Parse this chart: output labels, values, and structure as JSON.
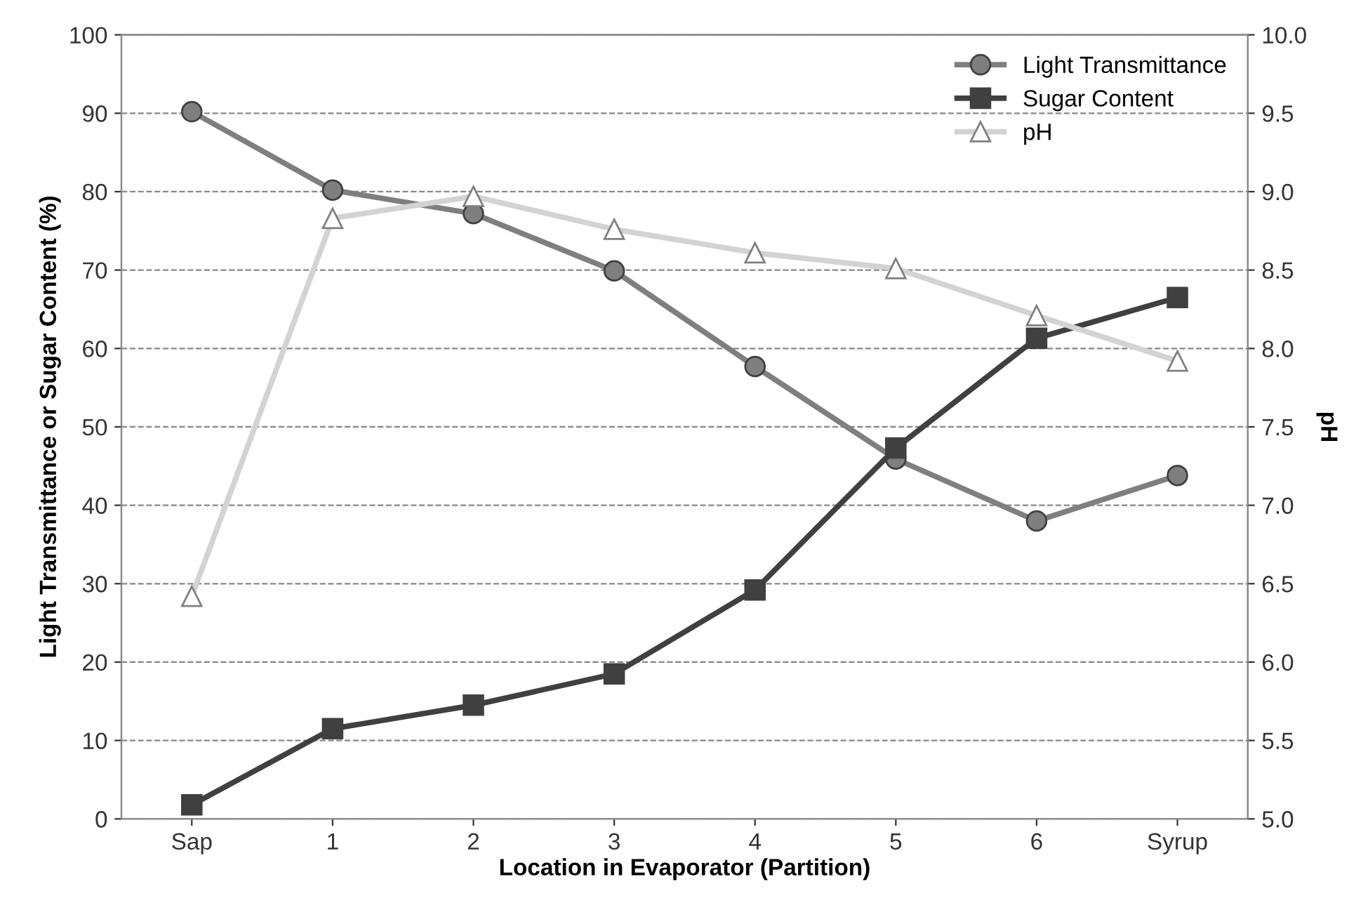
{
  "chart_data": {
    "type": "line",
    "xlabel": "Location in Evaporator (Partition)",
    "ylabel": "Light Transmittance or Sugar Content (%)",
    "y2label": "pH",
    "categories": [
      "Sap",
      "1",
      "2",
      "3",
      "4",
      "5",
      "6",
      "Syrup"
    ],
    "series": [
      {
        "name": "Light Transmittance",
        "color": "#7f7f7f",
        "marker": "circle",
        "values": [
          90.2,
          80.2,
          77.2,
          69.9,
          57.7,
          45.9,
          38.0,
          43.8
        ]
      },
      {
        "name": "Sugar Content",
        "color": "#404040",
        "marker": "square",
        "values": [
          1.8,
          11.5,
          14.5,
          18.5,
          29.2,
          47.3,
          61.3,
          66.5
        ]
      },
      {
        "name": "pH",
        "color": "#d3d3d3",
        "marker": "triangle",
        "axis": "y2",
        "values": [
          6.42,
          8.83,
          8.97,
          8.76,
          8.61,
          8.51,
          8.21,
          7.92
        ]
      }
    ],
    "ylim": [
      0,
      100
    ],
    "yticks": [
      0,
      10,
      20,
      30,
      40,
      50,
      60,
      70,
      80,
      90,
      100
    ],
    "y2lim": [
      5.0,
      10.0
    ],
    "y2ticks": [
      {
        "value": 5.0,
        "label": "5.0"
      },
      {
        "value": 5.5,
        "label": "5.5"
      },
      {
        "value": 6.0,
        "label": "6.0"
      },
      {
        "value": 6.5,
        "label": "6.5"
      },
      {
        "value": 7.0,
        "label": "7.0"
      },
      {
        "value": 7.5,
        "label": "7.5"
      },
      {
        "value": 8.0,
        "label": "8.0"
      },
      {
        "value": 8.5,
        "label": "8.5"
      },
      {
        "value": 9.0,
        "label": "9.0"
      },
      {
        "value": 9.5,
        "label": "9.5"
      },
      {
        "value": 10.0,
        "label": "10.0"
      }
    ],
    "grid": "y",
    "legend": "top right",
    "line_style": "solid"
  }
}
